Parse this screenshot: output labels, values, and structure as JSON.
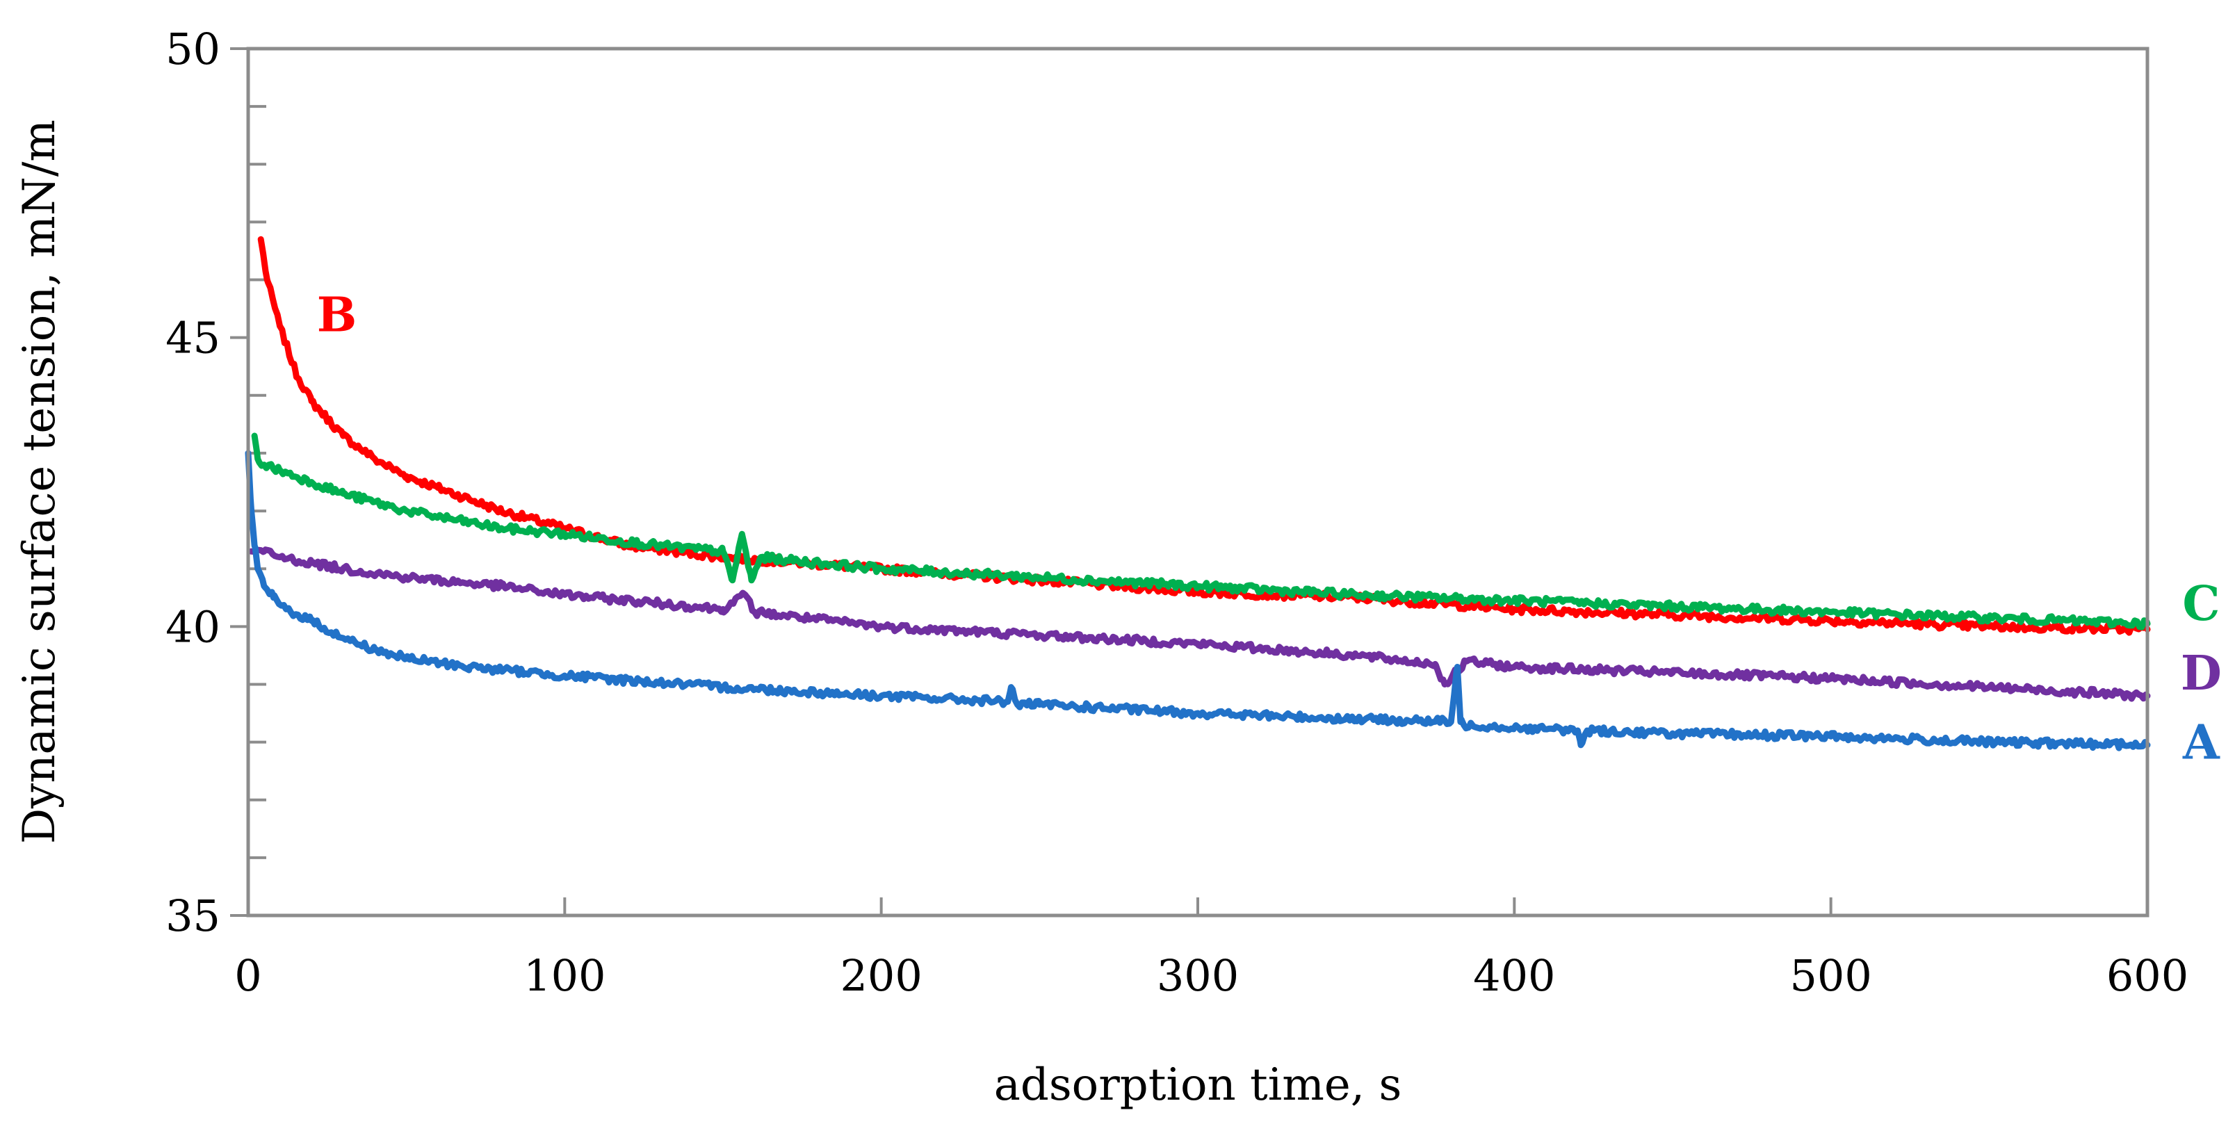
{
  "chart_data": {
    "type": "line",
    "title": "",
    "xlabel": "adsorption time, s",
    "ylabel": "Dynamic surface tension, mN/m",
    "xlim": [
      0,
      600
    ],
    "ylim": [
      35,
      50
    ],
    "xticks": [
      0,
      100,
      200,
      300,
      400,
      500,
      600
    ],
    "xtick_labels": [
      "0",
      "100",
      "200",
      "300",
      "400",
      "500",
      "600"
    ],
    "yticks": [
      35,
      40,
      45,
      50
    ],
    "ytick_labels": [
      "35",
      "40",
      "45",
      "50"
    ],
    "y_minor_step": 1,
    "grid": false,
    "legend": "inline labels at right end of series",
    "series": [
      {
        "name": "B",
        "label": "B",
        "color": "#ff0000",
        "label_at": [
          28,
          45.4
        ],
        "x": [
          4,
          6,
          10,
          15,
          20,
          30,
          40,
          50,
          60,
          80,
          100,
          120,
          150,
          200,
          250,
          300,
          350,
          400,
          450,
          500,
          550,
          600
        ],
        "y": [
          46.7,
          46.0,
          45.2,
          44.4,
          43.9,
          43.3,
          42.9,
          42.6,
          42.4,
          42.0,
          41.7,
          41.4,
          41.2,
          41.0,
          40.8,
          40.6,
          40.5,
          40.3,
          40.2,
          40.1,
          40.0,
          39.95
        ]
      },
      {
        "name": "C",
        "label": "C",
        "color": "#00b050",
        "label_at": [
          617,
          40.4
        ],
        "x": [
          2,
          3,
          5,
          10,
          20,
          30,
          50,
          80,
          100,
          130,
          150,
          153,
          156,
          159,
          162,
          170,
          200,
          250,
          300,
          350,
          400,
          450,
          500,
          550,
          600
        ],
        "y": [
          43.3,
          42.9,
          42.8,
          42.7,
          42.5,
          42.3,
          42.0,
          41.7,
          41.6,
          41.4,
          41.3,
          40.8,
          41.6,
          40.8,
          41.2,
          41.15,
          41.0,
          40.85,
          40.7,
          40.55,
          40.45,
          40.35,
          40.25,
          40.15,
          40.05
        ]
      },
      {
        "name": "D",
        "label": "D",
        "color": "#7030a0",
        "label_at": [
          617,
          39.2
        ],
        "x": [
          1,
          5,
          10,
          20,
          30,
          50,
          80,
          100,
          150,
          157,
          160,
          200,
          250,
          300,
          350,
          375,
          378,
          385,
          400,
          450,
          500,
          550,
          600
        ],
        "y": [
          41.3,
          41.3,
          41.2,
          41.1,
          41.0,
          40.85,
          40.7,
          40.55,
          40.3,
          40.55,
          40.25,
          40.0,
          39.85,
          39.7,
          39.5,
          39.35,
          39.0,
          39.4,
          39.3,
          39.2,
          39.1,
          38.95,
          38.8
        ]
      },
      {
        "name": "A",
        "label": "A",
        "color": "#2272c8",
        "label_at": [
          617,
          38.0
        ],
        "x": [
          0,
          1,
          2,
          3,
          5,
          8,
          12,
          20,
          30,
          40,
          50,
          70,
          100,
          150,
          200,
          240,
          241,
          243,
          250,
          300,
          350,
          380,
          382,
          383,
          384,
          386,
          400,
          420,
          421,
          423,
          450,
          500,
          550,
          600
        ],
        "y": [
          43.0,
          42.0,
          41.4,
          41.0,
          40.7,
          40.5,
          40.3,
          40.1,
          39.8,
          39.6,
          39.45,
          39.3,
          39.15,
          38.95,
          38.8,
          38.7,
          38.95,
          38.65,
          38.65,
          38.5,
          38.4,
          38.35,
          39.3,
          38.35,
          38.3,
          38.3,
          38.25,
          38.2,
          37.95,
          38.2,
          38.15,
          38.1,
          38.0,
          37.95
        ]
      }
    ]
  }
}
